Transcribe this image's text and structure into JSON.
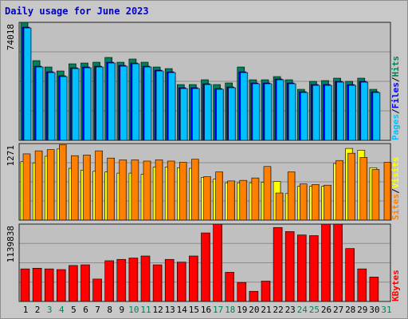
{
  "title": "Daily usage for June 2023",
  "colors": {
    "hits": "#00805c",
    "files": "#0000ff",
    "pages": "#00c0ff",
    "visits": "#ffff00",
    "sites": "#ff8000",
    "kbytes": "#ff0000",
    "plot_bg": "#c0c0c0",
    "frame_bg": "#c8c8c8"
  },
  "chart_data": [
    {
      "type": "bar",
      "panel": "hits",
      "max_label": "74018",
      "legend": [
        "Pages",
        "Files",
        "Hits"
      ],
      "categories": [
        "1",
        "2",
        "3",
        "4",
        "5",
        "6",
        "7",
        "8",
        "9",
        "10",
        "11",
        "12",
        "13",
        "14",
        "15",
        "16",
        "17",
        "18",
        "19",
        "20",
        "21",
        "22",
        "23",
        "24",
        "25",
        "26",
        "27",
        "28",
        "29",
        "30",
        "31"
      ],
      "weekend_days": [
        "3",
        "4",
        "10",
        "11",
        "17",
        "18",
        "24",
        "25",
        "31"
      ],
      "ylim": [
        0,
        74018
      ],
      "series": [
        {
          "name": "Hits",
          "values": [
            74000,
            50000,
            46000,
            43500,
            48000,
            48500,
            49000,
            52000,
            49000,
            51000,
            49000,
            46000,
            45000,
            35000,
            35000,
            38000,
            35000,
            36000,
            46000,
            38000,
            38000,
            40000,
            38000,
            32000,
            37000,
            37500,
            39000,
            37000,
            39000,
            32000,
            0
          ]
        },
        {
          "name": "Files",
          "values": [
            71000,
            46500,
            43000,
            40500,
            45500,
            46000,
            46500,
            49000,
            47000,
            48500,
            46500,
            44000,
            43000,
            33000,
            33000,
            35500,
            32500,
            33500,
            43000,
            36000,
            36000,
            38500,
            36000,
            30500,
            35000,
            35000,
            37000,
            35000,
            37000,
            30500,
            0
          ]
        },
        {
          "name": "Pages",
          "values": [
            70500,
            46000,
            42500,
            40000,
            45000,
            45500,
            46000,
            48500,
            46500,
            48000,
            46000,
            43500,
            42500,
            32500,
            32500,
            35000,
            32000,
            33000,
            42500,
            35500,
            35500,
            38000,
            35500,
            30000,
            34500,
            34500,
            36500,
            34500,
            36500,
            30000,
            0
          ]
        }
      ]
    },
    {
      "type": "bar",
      "panel": "visits",
      "max_label": "1271",
      "legend": [
        "Sites",
        "Visits"
      ],
      "categories": [
        "1",
        "2",
        "3",
        "4",
        "5",
        "6",
        "7",
        "8",
        "9",
        "10",
        "11",
        "12",
        "13",
        "14",
        "15",
        "16",
        "17",
        "18",
        "19",
        "20",
        "21",
        "22",
        "23",
        "24",
        "25",
        "26",
        "27",
        "28",
        "29",
        "30",
        "31"
      ],
      "ylim": [
        0,
        1271
      ],
      "series": [
        {
          "name": "Visits",
          "values": [
            970,
            950,
            1060,
            1180,
            860,
            830,
            810,
            800,
            780,
            780,
            760,
            880,
            880,
            870,
            860,
            710,
            680,
            620,
            620,
            620,
            630,
            640,
            440,
            560,
            560,
            560,
            940,
            1190,
            1160,
            870,
            0
          ]
        },
        {
          "name": "Sites",
          "values": [
            1100,
            1150,
            1170,
            1250,
            1070,
            1080,
            1150,
            1030,
            1000,
            1000,
            980,
            1000,
            980,
            960,
            1010,
            720,
            800,
            650,
            660,
            700,
            890,
            450,
            800,
            600,
            590,
            580,
            990,
            1110,
            1040,
            840,
            960
          ]
        }
      ]
    },
    {
      "type": "bar",
      "panel": "kbytes",
      "max_label": "1139838",
      "legend": [
        "KBytes"
      ],
      "categories": [
        "1",
        "2",
        "3",
        "4",
        "5",
        "6",
        "7",
        "8",
        "9",
        "10",
        "11",
        "12",
        "13",
        "14",
        "15",
        "16",
        "17",
        "18",
        "19",
        "20",
        "21",
        "22",
        "23",
        "24",
        "25",
        "26",
        "27",
        "28",
        "29",
        "30",
        "31"
      ],
      "ylim": [
        0,
        1139838
      ],
      "series": [
        {
          "name": "KBytes",
          "values": [
            480000,
            490000,
            480000,
            470000,
            530000,
            540000,
            330000,
            600000,
            620000,
            640000,
            670000,
            540000,
            620000,
            580000,
            670000,
            1010000,
            1139838,
            430000,
            280000,
            150000,
            300000,
            1090000,
            1030000,
            980000,
            970000,
            1139838,
            1139838,
            780000,
            480000,
            360000,
            0
          ]
        }
      ]
    }
  ]
}
